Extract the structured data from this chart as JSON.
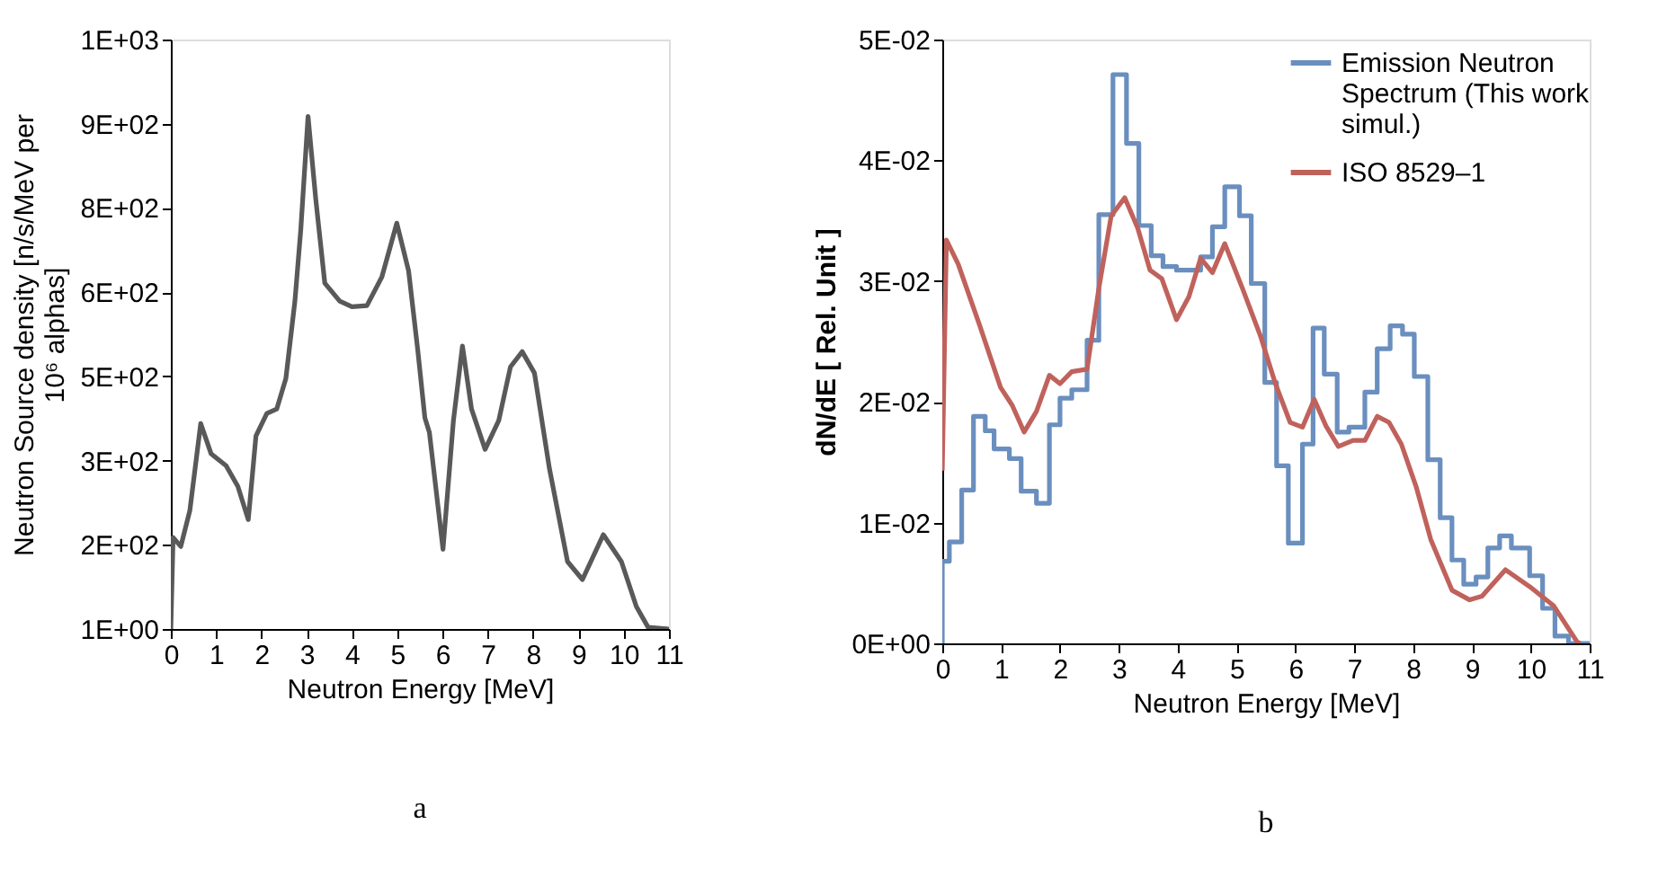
{
  "chart_data": [
    {
      "type": "line",
      "xlabel": "Neutron Energy [MeV]",
      "ylabel": "Neutron Source density [n/s/MeV per 10⁶ alphas]",
      "series": [
        {
          "color": "#595959",
          "x": [
            0,
            0.05,
            0.22,
            0.42,
            0.66,
            0.89,
            1.22,
            1.48,
            1.71,
            1.88,
            2.12,
            2.34,
            2.54,
            2.74,
            2.87,
            3.03,
            3.2,
            3.4,
            3.73,
            4.0,
            4.33,
            4.66,
            4.99,
            5.25,
            5.45,
            5.61,
            5.71,
            6.01,
            6.24,
            6.44,
            6.64,
            6.94,
            7.24,
            7.5,
            7.76,
            8.03,
            8.36,
            8.76,
            9.09,
            9.55,
            9.95,
            10.28,
            10.54,
            11
          ],
          "values": [
            1,
            164,
            148,
            212,
            367,
            313,
            292,
            255,
            196,
            345,
            385,
            393,
            447,
            585,
            713,
            914,
            767,
            617,
            585,
            575,
            577,
            628,
            724,
            639,
            500,
            377,
            351,
            143,
            372,
            505,
            393,
            321,
            372,
            468,
            495,
            457,
            287,
            121,
            89,
            169,
            121,
            41,
            4,
            1
          ]
        }
      ],
      "xlim": [
        0,
        11
      ],
      "xticks": [
        0,
        1,
        2,
        3,
        4,
        5,
        6,
        7,
        8,
        9,
        10,
        11
      ],
      "ylim": [
        1,
        1051
      ],
      "yticks": [
        {
          "value": 1,
          "label": "1E+00"
        },
        {
          "value": 151,
          "label": "2E+02"
        },
        {
          "value": 301,
          "label": "3E+02"
        },
        {
          "value": 451,
          "label": "5E+02"
        },
        {
          "value": 601,
          "label": "6E+02"
        },
        {
          "value": 751,
          "label": "8E+02"
        },
        {
          "value": 901,
          "label": "9E+02"
        },
        {
          "value": 1051,
          "label": "1E+03"
        }
      ],
      "grid": false,
      "legend": false,
      "annotations": [
        "a"
      ]
    },
    {
      "type": "line",
      "xlabel": "Neutron Energy [MeV]",
      "ylabel": "dN/dE [ Rel. Unit ]",
      "legend": "top right",
      "series": [
        {
          "type": "step",
          "name": "Emission Neutron Spectrum (This work simul.)",
          "color": "#6a8fbf",
          "x": [
            0,
            0,
            0.12,
            0.33,
            0.53,
            0.73,
            0.88,
            1.14,
            1.34,
            1.6,
            1.82,
            2.0,
            2.2,
            2.46,
            2.66,
            2.9,
            3.13,
            3.34,
            3.55,
            3.75,
            3.98,
            4.39,
            4.59,
            4.8,
            5.05,
            5.25,
            5.48,
            5.68,
            5.88,
            6.12,
            6.3,
            6.49,
            6.71,
            6.91,
            7.18,
            7.39,
            7.61,
            7.82,
            8.02,
            8.25,
            8.46,
            8.66,
            8.86,
            9.07,
            9.27,
            9.47,
            9.67,
            9.98,
            10.2,
            10.41,
            10.64,
            11
          ],
          "values": [
            0,
            0.0068,
            0.0084,
            0.0127,
            0.0188,
            0.0176,
            0.0161,
            0.0153,
            0.0126,
            0.0116,
            0.0181,
            0.0203,
            0.021,
            0.0251,
            0.0355,
            0.0471,
            0.0414,
            0.0346,
            0.0321,
            0.0312,
            0.0309,
            0.032,
            0.0345,
            0.0378,
            0.0354,
            0.0298,
            0.0216,
            0.0147,
            0.0083,
            0.0165,
            0.0261,
            0.0223,
            0.0175,
            0.0179,
            0.0208,
            0.0244,
            0.0263,
            0.0256,
            0.0221,
            0.0152,
            0.0104,
            0.0069,
            0.0049,
            0.0055,
            0.0079,
            0.0089,
            0.0079,
            0.0056,
            0.0029,
            0.0006,
            0,
            0
          ]
        },
        {
          "type": "line",
          "name": "ISO 8529–1",
          "color": "#c0625c",
          "x": [
            0,
            0.07,
            0.27,
            0.63,
            0.99,
            1.19,
            1.39,
            1.6,
            1.82,
            2.0,
            2.2,
            2.46,
            2.66,
            2.87,
            3.1,
            3.32,
            3.53,
            3.73,
            3.98,
            4.19,
            4.39,
            4.59,
            4.8,
            5.1,
            5.41,
            5.66,
            5.91,
            6.12,
            6.32,
            6.52,
            6.73,
            6.98,
            7.18,
            7.39,
            7.59,
            7.8,
            8.05,
            8.3,
            8.66,
            8.96,
            9.17,
            9.57,
            9.98,
            10.39,
            10.79,
            10.84
          ],
          "values": [
            0.0143,
            0.0334,
            0.0314,
            0.0264,
            0.0212,
            0.0197,
            0.0175,
            0.0192,
            0.0222,
            0.0215,
            0.0225,
            0.0227,
            0.0294,
            0.0354,
            0.0369,
            0.0344,
            0.0309,
            0.0302,
            0.0268,
            0.0287,
            0.0319,
            0.0307,
            0.0331,
            0.0294,
            0.0254,
            0.0215,
            0.0183,
            0.0179,
            0.0202,
            0.018,
            0.0163,
            0.0168,
            0.0168,
            0.0188,
            0.0183,
            0.0165,
            0.013,
            0.0086,
            0.0044,
            0.0036,
            0.0039,
            0.0061,
            0.0047,
            0.0031,
            0.0001,
            0
          ]
        }
      ],
      "xlim": [
        0,
        11
      ],
      "xticks": [
        0,
        1,
        2,
        3,
        4,
        5,
        6,
        7,
        8,
        9,
        10,
        11
      ],
      "ylim": [
        0,
        0.05
      ],
      "yticks": [
        {
          "value": 0,
          "label": "0E+00"
        },
        {
          "value": 0.01,
          "label": "1E-02"
        },
        {
          "value": 0.02,
          "label": "2E-02"
        },
        {
          "value": 0.03,
          "label": "3E-02"
        },
        {
          "value": 0.04,
          "label": "4E-02"
        },
        {
          "value": 0.05,
          "label": "5E-02"
        }
      ],
      "grid": false,
      "annotations": [
        "b"
      ]
    }
  ]
}
